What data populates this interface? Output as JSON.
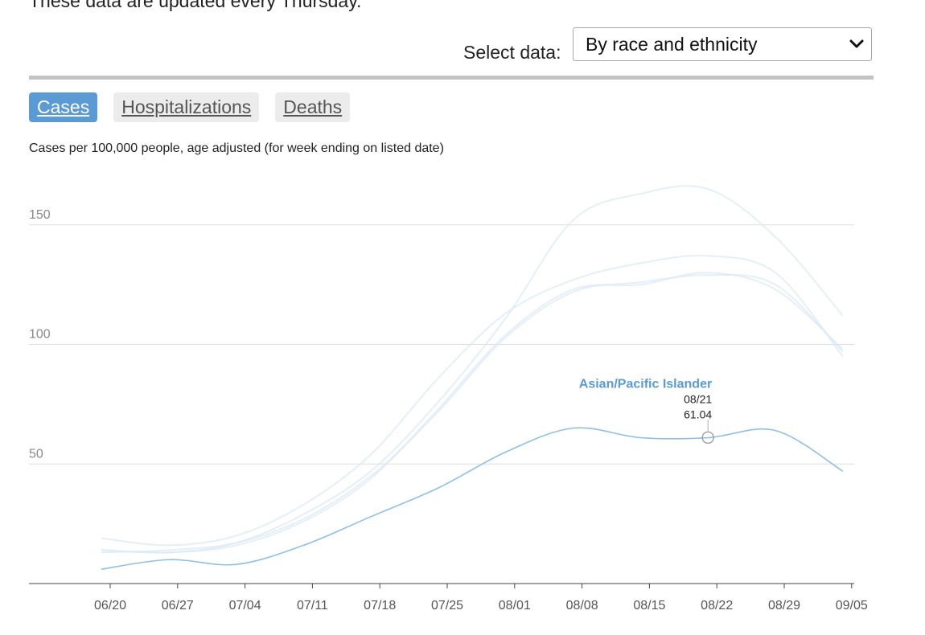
{
  "intro": {
    "note": "These data are updated every Thursday."
  },
  "selector": {
    "label": "Select data:",
    "value": "By race and ethnicity"
  },
  "tabs": [
    {
      "label": "Cases",
      "active": true
    },
    {
      "label": "Hospitalizations",
      "active": false
    },
    {
      "label": "Deaths",
      "active": false
    }
  ],
  "chart_data": {
    "type": "line",
    "title": "Cases per 100,000 people, age adjusted (for week ending on listed date)",
    "xlabel": "",
    "ylabel": "",
    "x_ticks": [
      "06/20",
      "06/27",
      "07/04",
      "07/11",
      "07/18",
      "07/25",
      "08/01",
      "08/08",
      "08/15",
      "08/22",
      "08/29",
      "09/05"
    ],
    "x": [
      "06/19",
      "06/26",
      "07/03",
      "07/10",
      "07/17",
      "07/24",
      "07/31",
      "08/07",
      "08/14",
      "08/21",
      "08/28",
      "09/04"
    ],
    "y_ticks": [
      50,
      100,
      150
    ],
    "ylim": [
      0,
      175
    ],
    "grid": true,
    "series": [
      {
        "highlighted": false,
        "values": [
          14,
          13,
          17,
          29,
          47,
          76,
          111,
          152,
          163,
          165,
          145,
          112
        ]
      },
      {
        "highlighted": false,
        "values": [
          19,
          16,
          20,
          33,
          54,
          86,
          113,
          127,
          134,
          137,
          130,
          95
        ]
      },
      {
        "highlighted": false,
        "values": [
          13,
          14,
          17,
          27,
          45,
          72,
          103,
          122,
          126,
          129,
          125,
          97
        ]
      },
      {
        "highlighted": false,
        "values": [
          14,
          13,
          16,
          26,
          44,
          73,
          104,
          123,
          125,
          130,
          123,
          98
        ]
      },
      {
        "highlighted": true,
        "name": "Asian/Pacific Islander",
        "color": "#8fc0e6",
        "values": [
          6,
          10,
          8,
          16,
          28,
          40,
          55,
          65,
          61,
          61,
          64,
          47
        ]
      }
    ],
    "tooltip": {
      "series": "Asian/Pacific Islander",
      "date": "08/21",
      "value": "61.04"
    }
  }
}
